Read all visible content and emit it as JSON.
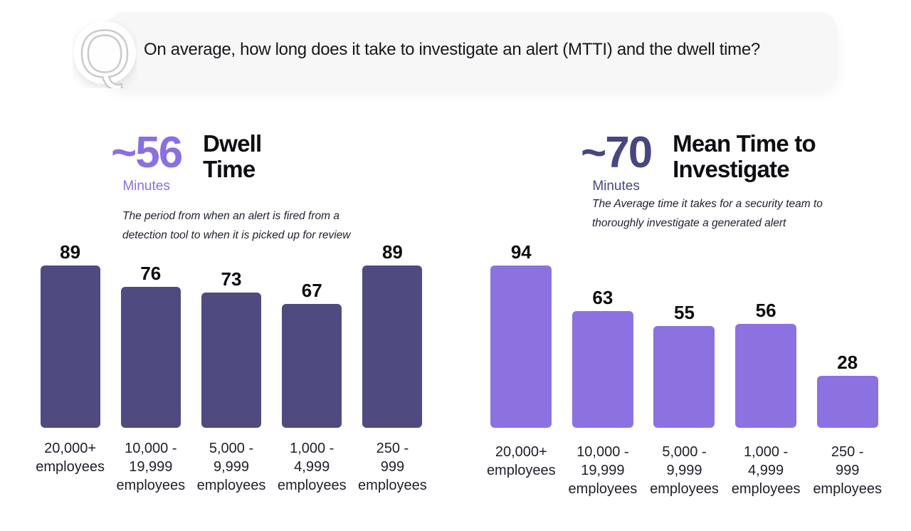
{
  "question": {
    "icon": "q-outline-icon",
    "text": "On average, how long does it take to investigate an alert (MTTI) and the dwell time?"
  },
  "colors": {
    "question_bubble_bg": "#F7F7F8",
    "q_icon_outline": "#C9C9C9",
    "dwell_bar": "#4F4A80",
    "dwell_stat": "#8A6FE2",
    "mtti_bar": "#8C72E0",
    "mtti_stat": "#484680"
  },
  "chart_data": [
    {
      "type": "bar",
      "title": "Dwell Time",
      "title_display": "Dwell\nTime",
      "stat": "~56",
      "stat_unit": "Minutes",
      "description": "The period from when an alert is fired from a\ndetection tool to when it is picked up for review",
      "categories": [
        "20,000+\nemployees",
        "10,000 -\n19,999\nemployees",
        "5,000 -\n9,999\nemployees",
        "1,000 -\n4,999\nemployees",
        "250 -\n999\nemployees"
      ],
      "values": [
        89,
        76,
        73,
        67,
        89
      ],
      "unit": "minutes",
      "bar_color": "#4F4A80",
      "stat_color": "#8A6FE2",
      "xlabel": "",
      "ylabel": "",
      "ylim": [
        0,
        100
      ],
      "grid": false,
      "legend": "none",
      "value_labels": "above bars"
    },
    {
      "type": "bar",
      "title": "Mean Time to Investigate",
      "title_display": "Mean Time to\nInvestigate",
      "stat": "~70",
      "stat_unit": "Minutes",
      "description": "The Average time it takes for a security team to\nthoroughly investigate a generated alert",
      "categories": [
        "20,000+\nemployees",
        "10,000 -\n19,999\nemployees",
        "5,000 -\n9,999\nemployees",
        "1,000 -\n4,999\nemployees",
        "250 -\n999\nemployees"
      ],
      "values": [
        94,
        63,
        55,
        56,
        28
      ],
      "unit": "minutes",
      "bar_color": "#8C72E0",
      "stat_color": "#484680",
      "xlabel": "",
      "ylabel": "",
      "ylim": [
        0,
        100
      ],
      "grid": false,
      "legend": "none",
      "value_labels": "above bars"
    }
  ]
}
